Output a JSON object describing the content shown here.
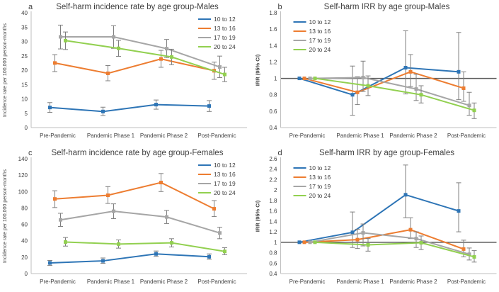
{
  "page": {
    "background": "#ffffff"
  },
  "colors": {
    "error_bar": "#7f7f7f",
    "axis_line": "#bfbfbf",
    "ref_line": "#595959",
    "text": "#404040",
    "title": "#3f3f3f"
  },
  "age_groups": [
    "10 to 12",
    "13 to 16",
    "17 to 19",
    "20 to 24"
  ],
  "chart_data": [
    {
      "panel_label": "a",
      "type": "line",
      "title": "Self-harm incidence rate by age group-Males",
      "ylabel": "Incidence rate per 100,000 person-months",
      "ylabel_bold": false,
      "ylim": [
        0,
        40
      ],
      "ytick_step": 5,
      "categories": [
        "Pre-Pandemic",
        "Pandemic Phase 1",
        "Pandemic Phase 2",
        "Post-Pandemic"
      ],
      "legend_position": "top-right",
      "ref_line": null,
      "series": [
        {
          "name": "10 to 12",
          "color": "#2E75B6",
          "values": [
            7.0,
            5.6,
            8.0,
            7.5
          ],
          "ci_low": [
            5.3,
            4.2,
            6.4,
            5.6
          ],
          "ci_high": [
            8.7,
            7.1,
            9.6,
            9.4
          ]
        },
        {
          "name": "13 to 16",
          "color": "#ED7D31",
          "values": [
            22.5,
            18.9,
            23.9,
            19.8
          ],
          "ci_low": [
            19.5,
            16.3,
            21.0,
            16.8
          ],
          "ci_high": [
            25.4,
            21.6,
            26.9,
            22.8
          ]
        },
        {
          "name": "17 to 19",
          "color": "#A6A6A6",
          "values": [
            31.6,
            31.6,
            27.5,
            21.1
          ],
          "ci_low": [
            27.4,
            27.6,
            24.4,
            17.4
          ],
          "ci_high": [
            35.7,
            35.5,
            30.7,
            24.9
          ]
        },
        {
          "name": "20 to 24",
          "color": "#92D050",
          "values": [
            30.3,
            27.6,
            24.6,
            18.5
          ],
          "ci_low": [
            27.2,
            24.8,
            21.9,
            16.0
          ],
          "ci_high": [
            33.3,
            30.4,
            27.3,
            21.0
          ]
        }
      ]
    },
    {
      "panel_label": "b",
      "type": "line",
      "title": "Self-harm IRR by age group-Males",
      "ylabel": "IRR (95% CI)",
      "ylabel_bold": true,
      "ylim": [
        0.4,
        1.8
      ],
      "ytick_step": 0.2,
      "categories": [
        "Pre-Pandemic",
        "Pandemic Phase 1",
        "Pandemic Phase 2",
        "Post-Pandemic"
      ],
      "legend_position": "top-left",
      "ref_line": 1,
      "series": [
        {
          "name": "10 to 12",
          "color": "#2E75B6",
          "values": [
            1.0,
            0.8,
            1.13,
            1.08
          ],
          "ci_low": [
            1.0,
            0.55,
            0.81,
            0.74
          ],
          "ci_high": [
            1.0,
            1.15,
            1.58,
            1.56
          ]
        },
        {
          "name": "13 to 16",
          "color": "#ED7D31",
          "values": [
            1.0,
            0.83,
            1.08,
            0.88
          ],
          "ci_low": [
            1.0,
            0.68,
            0.9,
            0.72
          ],
          "ci_high": [
            1.0,
            1.02,
            1.29,
            1.08
          ]
        },
        {
          "name": "17 to 19",
          "color": "#A6A6A6",
          "values": [
            1.0,
            1.01,
            0.87,
            0.67
          ],
          "ci_low": [
            1.0,
            0.84,
            0.73,
            0.55
          ],
          "ci_high": [
            1.0,
            1.21,
            1.05,
            0.83
          ]
        },
        {
          "name": "20 to 24",
          "color": "#92D050",
          "values": [
            1.0,
            0.91,
            0.8,
            0.61
          ],
          "ci_low": [
            1.0,
            0.79,
            0.7,
            0.51
          ],
          "ci_high": [
            1.0,
            1.03,
            0.91,
            0.7
          ]
        }
      ]
    },
    {
      "panel_label": "c",
      "type": "line",
      "title": "Self-harm incidence rate by age group-Females",
      "ylabel": "Incidence rate per 100,000 person-months",
      "ylabel_bold": false,
      "ylim": [
        0,
        140
      ],
      "ytick_step": 20,
      "categories": [
        "Pre-Pandemic",
        "Pandemic Phase 1",
        "Pandemic Phase 2",
        "Post-Pandemic"
      ],
      "legend_position": "top-right",
      "ref_line": null,
      "series": [
        {
          "name": "10 to 12",
          "color": "#2E75B6",
          "values": [
            13,
            15.5,
            24,
            20.5
          ],
          "ci_low": [
            10,
            12.5,
            21,
            17.5
          ],
          "ci_high": [
            16,
            19,
            27.5,
            24
          ]
        },
        {
          "name": "13 to 16",
          "color": "#ED7D31",
          "values": [
            91,
            95.5,
            111,
            79
          ],
          "ci_low": [
            80.5,
            85.5,
            100,
            69.5
          ],
          "ci_high": [
            101,
            106,
            122,
            89
          ]
        },
        {
          "name": "17 to 19",
          "color": "#A6A6A6",
          "values": [
            65.5,
            76,
            69,
            49.5
          ],
          "ci_low": [
            57.5,
            67,
            61,
            42.5
          ],
          "ci_high": [
            73.5,
            85,
            77,
            56.5
          ]
        },
        {
          "name": "20 to 24",
          "color": "#92D050",
          "values": [
            38.5,
            36,
            37.5,
            27
          ],
          "ci_low": [
            33.5,
            31,
            32.5,
            23
          ],
          "ci_high": [
            44,
            41,
            42.5,
            31.5
          ]
        }
      ]
    },
    {
      "panel_label": "d",
      "type": "line",
      "title": "Self-harm IRR by age group-Females",
      "ylabel": "IRR (95% CI)",
      "ylabel_bold": true,
      "ylim": [
        0.4,
        2.6
      ],
      "ytick_step": 0.2,
      "categories": [
        "Pre-Pandemic",
        "Pandemic Phase 1",
        "Pandemic Phase 2",
        "Post-Pandemic"
      ],
      "legend_position": "top-left",
      "ref_line": 1,
      "series": [
        {
          "name": "10 to 12",
          "color": "#2E75B6",
          "values": [
            1.0,
            1.19,
            1.91,
            1.6
          ],
          "ci_low": [
            1.0,
            0.9,
            1.47,
            1.2
          ],
          "ci_high": [
            1.0,
            1.58,
            2.48,
            2.14
          ]
        },
        {
          "name": "13 to 16",
          "color": "#ED7D31",
          "values": [
            1.0,
            1.05,
            1.24,
            0.87
          ],
          "ci_low": [
            1.0,
            0.88,
            1.07,
            0.72
          ],
          "ci_high": [
            1.0,
            1.25,
            1.47,
            1.04
          ]
        },
        {
          "name": "17 to 19",
          "color": "#A6A6A6",
          "values": [
            1.0,
            1.18,
            1.07,
            0.77
          ],
          "ci_low": [
            1.0,
            0.93,
            0.9,
            0.66
          ],
          "ci_high": [
            1.0,
            1.35,
            1.2,
            0.89
          ]
        },
        {
          "name": "20 to 24",
          "color": "#92D050",
          "values": [
            1.0,
            0.95,
            0.99,
            0.72
          ],
          "ci_low": [
            1.0,
            0.83,
            0.86,
            0.62
          ],
          "ci_high": [
            1.0,
            1.07,
            1.12,
            0.84
          ]
        }
      ]
    }
  ]
}
